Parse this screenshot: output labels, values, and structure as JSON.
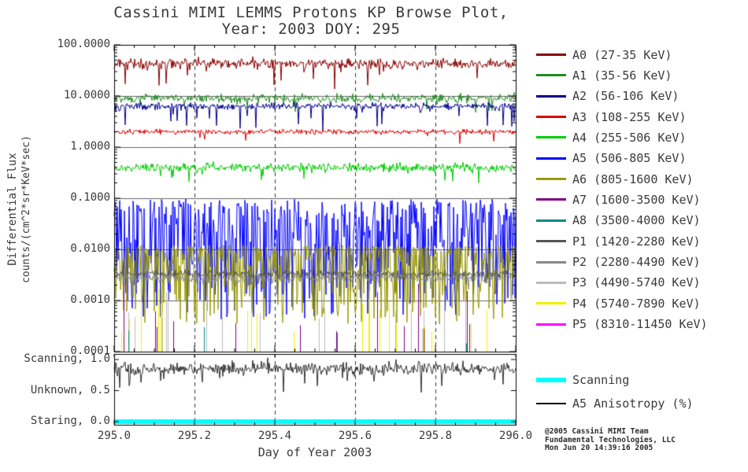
{
  "chart_data": {
    "type": "line",
    "title": "Cassini MIMI LEMMS Protons KP Browse Plot, Year: 2003 DOY: 295",
    "title_line1": "Cassini MIMI LEMMS Protons KP Browse Plot,",
    "title_line2": "Year: 2003 DOY: 295",
    "xlabel": "Day of Year 2003",
    "ylabel_line1": "Differential Flux",
    "ylabel_line2": "counts/(cm^2*sr*KeV*sec)",
    "y_scale": "log",
    "ylim": [
      0.0001,
      100.0
    ],
    "xlim": [
      295.0,
      296.0
    ],
    "x_range": [
      295.0,
      296.0
    ],
    "x_ticks": [
      "295.0",
      "295.2",
      "295.4",
      "295.6",
      "295.8",
      "296.0"
    ],
    "x_tick_values": [
      295.0,
      295.2,
      295.4,
      295.6,
      295.8,
      296.0
    ],
    "y_ticks": [
      "100.0000",
      "10.0000",
      "1.0000",
      "0.1000",
      "0.0100",
      "0.0010",
      "0.0001"
    ],
    "y_tick_values": [
      100,
      10,
      1,
      0.1,
      0.01,
      0.001,
      0.0001
    ],
    "grid": {
      "h_decades": true,
      "v_dashed": [
        295.2,
        295.4,
        295.6,
        295.8
      ]
    },
    "legend_position": "right",
    "series": [
      {
        "id": "A0",
        "label": "A0 (27-35 KeV)",
        "color": "#8B0000",
        "render": "band",
        "mean_log": 1.63,
        "noise_log": 0.1,
        "spike_prob": 0.03,
        "spike_mag": 0.45
      },
      {
        "id": "A1",
        "label": "A1 (35-56 KeV)",
        "color": "#228B22",
        "render": "band",
        "mean_log": 0.95,
        "noise_log": 0.09,
        "spike_prob": 0.02,
        "spike_mag": 0.35
      },
      {
        "id": "A2",
        "label": "A2 (56-106 KeV)",
        "color": "#00008B",
        "render": "band",
        "mean_log": 0.8,
        "noise_log": 0.07,
        "spike_prob": 0.05,
        "spike_mag": 0.45
      },
      {
        "id": "A3",
        "label": "A3 (108-255 KeV)",
        "color": "#DC0000",
        "render": "band",
        "mean_log": 0.3,
        "noise_log": 0.05,
        "spike_prob": 0.02,
        "spike_mag": 0.25
      },
      {
        "id": "A4",
        "label": "A4 (255-506 KeV)",
        "color": "#00CC00",
        "render": "band",
        "mean_log": -0.4,
        "noise_log": 0.09,
        "spike_prob": 0.03,
        "spike_mag": 0.3
      },
      {
        "id": "A5",
        "label": "A5 (506-805 KeV)",
        "color": "#0000FF",
        "render": "wash",
        "top_log": -1.05,
        "depth_log": 2.3,
        "bias": 1.7
      },
      {
        "id": "A6",
        "label": "A6 (805-1600 KeV)",
        "color": "#999900",
        "render": "wash",
        "top_log": -1.95,
        "depth_log": 1.5,
        "bias": 2.6
      },
      {
        "id": "A7",
        "label": "A7 (1600-3500 KeV)",
        "color": "#800080",
        "render": "spikes",
        "floor_log": -4,
        "base_log": -3.6,
        "range_log": 1.0,
        "density": 0.025
      },
      {
        "id": "A8",
        "label": "A8 (3500-4000 KeV)",
        "color": "#008B8B",
        "render": "spikes",
        "floor_log": -4,
        "base_log": -3.85,
        "range_log": 0.35,
        "density": 0.01
      },
      {
        "id": "P1",
        "label": "P1 (1420-2280 KeV)",
        "color": "#555555",
        "render": "band",
        "mean_log": -2.48,
        "noise_log": 0.07,
        "spike_prob": 0.02,
        "spike_mag": 0.3
      },
      {
        "id": "P2",
        "label": "P2 (2280-4490 KeV)",
        "color": "#888888",
        "render": "band",
        "mean_log": -2.56,
        "noise_log": 0.09,
        "spike_prob": 0.02,
        "spike_mag": 0.3
      },
      {
        "id": "P3",
        "label": "P3 (4490-5740 KeV)",
        "color": "#BBBBBB",
        "render": "spikes",
        "floor_log": -4,
        "base_log": -3.55,
        "range_log": 1.0,
        "density": 0.05
      },
      {
        "id": "P4",
        "label": "P4 (5740-7890 KeV)",
        "color": "#F0F000",
        "render": "spikes",
        "floor_log": -4,
        "base_log": -3.65,
        "range_log": 0.9,
        "density": 0.05
      },
      {
        "id": "P5",
        "label": "P5 (8310-11450 KeV)",
        "color": "#FF00FF",
        "render": "spikes",
        "floor_log": -4,
        "base_log": -3.9,
        "range_log": 0.2,
        "density": 0.0
      }
    ],
    "mode_panel": {
      "y_ticks": [
        {
          "label": "Scanning, 1.0",
          "value": 1.0
        },
        {
          "label": "Unknown, 0.5",
          "value": 0.5
        },
        {
          "label": "Staring, 0.0",
          "value": 0.0
        }
      ],
      "series": [
        {
          "id": "scanning",
          "label": "Scanning",
          "color": "#00FFFF",
          "render": "flat",
          "value": 0.0,
          "thickness": 6
        },
        {
          "id": "a5_anisotropy",
          "label": "A5 Anisotropy (%)",
          "color": "#000000",
          "render": "noise",
          "mean": 0.85,
          "noise": 0.11,
          "clamp": [
            0.3,
            1.03
          ]
        }
      ]
    }
  },
  "footer": {
    "credit_line1": "@2005 Cassini MIMI Team",
    "credit_line2": "Fundamental Technologies, LLC",
    "credit_line3": "Mon Jun 20 14:39:16 2005"
  }
}
